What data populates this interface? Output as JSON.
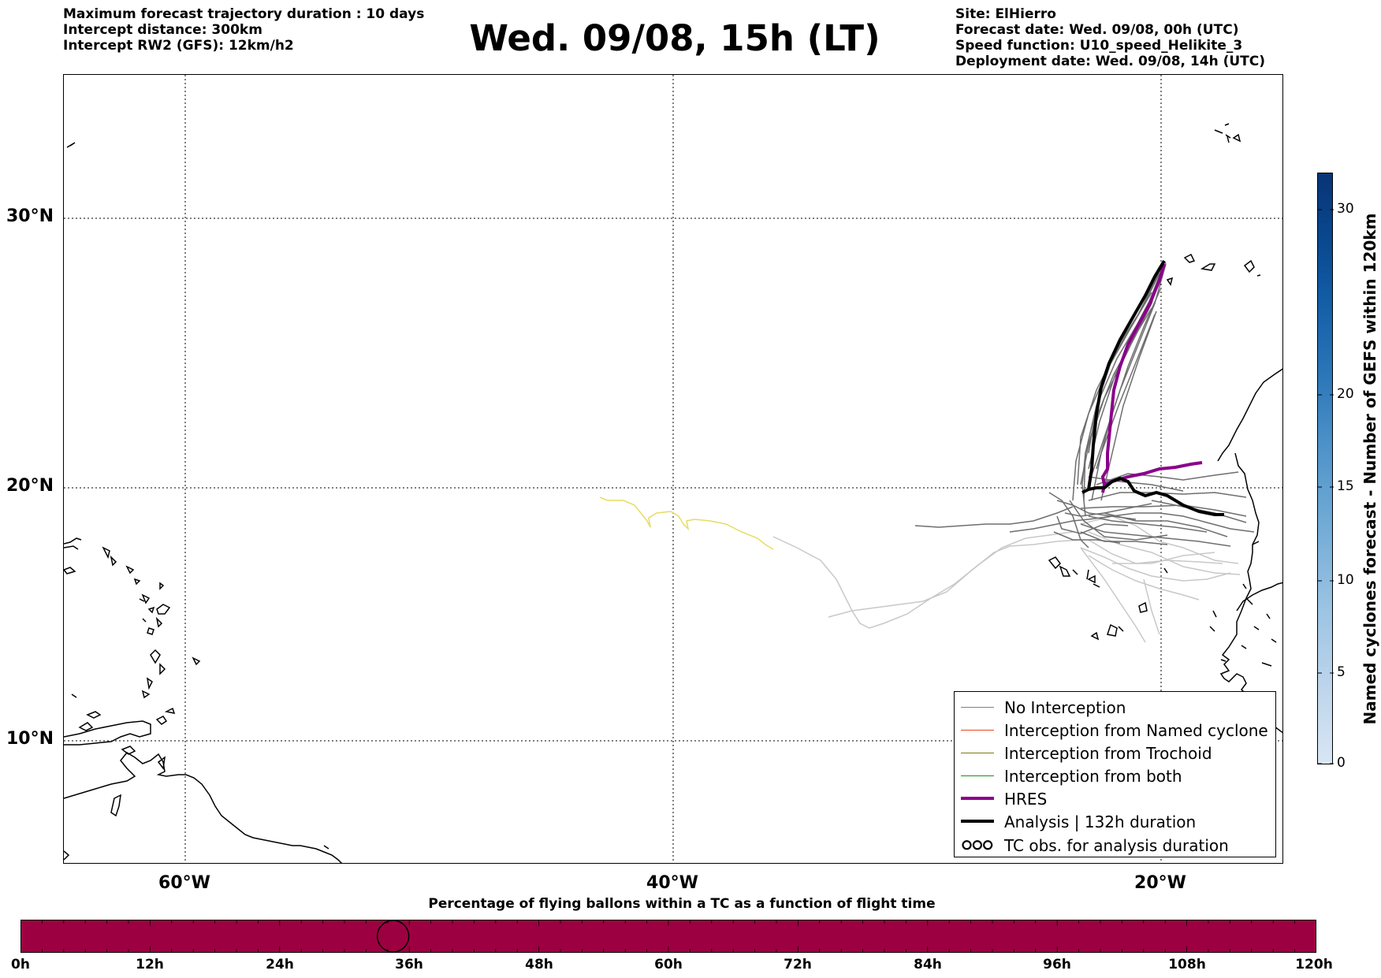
{
  "header": {
    "left_lines": [
      "Maximum forecast trajectory duration : 10 days",
      "Intercept distance: 300km",
      "Intercept RW2 (GFS):  12km/h2"
    ],
    "title": "Wed. 09/08, 15h (LT)",
    "right_lines": [
      "Site: ElHierro",
      "Forecast date: Wed. 09/08, 00h (UTC)",
      "Speed function: U10_speed_Helikite_3",
      "Deployment date: Wed. 09/08, 14h (UTC)"
    ]
  },
  "map": {
    "lat_labels": [
      "30°N",
      "20°N",
      "10°N"
    ],
    "lon_labels": [
      "60°W",
      "40°W",
      "20°W"
    ],
    "colors": {
      "no_interception": "#6e6e6e",
      "faded_trajectory": "#c8c8c8",
      "yellow_trajectory": "#e6dc64",
      "hres": "#8b008b",
      "analysis": "#000000"
    }
  },
  "legend": {
    "items": [
      {
        "label": "No Interception",
        "color": "#808080",
        "style": "thin"
      },
      {
        "label": "Interception from Named cyclone",
        "color": "#e8461e",
        "style": "thin"
      },
      {
        "label": "Interception from Trochoid",
        "color": "#7a7a14",
        "style": "thin"
      },
      {
        "label": "Interception from both",
        "color": "#1e8c1e",
        "style": "thin"
      },
      {
        "label": "HRES",
        "color": "#8b008b",
        "style": "thick"
      },
      {
        "label": "Analysis | 132h duration",
        "color": "#000000",
        "style": "thick"
      },
      {
        "label": "TC obs. for analysis duration",
        "color": "#000000",
        "style": "symbol",
        "symbol": "ഠഠഠ"
      }
    ]
  },
  "colorbar": {
    "title": "Named cyclones forecast - Number of GEFS within 120km",
    "ticks": [
      "0",
      "5",
      "10",
      "15",
      "20",
      "30"
    ],
    "colors": [
      "#d8e6f5",
      "#c0d6ec",
      "#9cc4e3",
      "#73acd6",
      "#4d92c8",
      "#2b76b8",
      "#135ea6",
      "#0a4990",
      "#083476"
    ]
  },
  "timeline": {
    "title": "Percentage of flying ballons within a TC as a function of flight time",
    "labels": [
      "0h",
      "12h",
      "24h",
      "36h",
      "48h",
      "60h",
      "72h",
      "84h",
      "96h",
      "108h",
      "120h"
    ],
    "bar_color": "#9d0040",
    "marker_hours": 34.5
  }
}
